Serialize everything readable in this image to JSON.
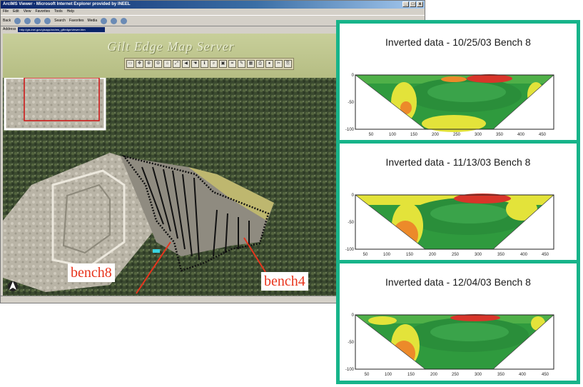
{
  "browser": {
    "title": "ArcIMS Viewer - Microsoft Internet Explorer provided by INEEL",
    "window_buttons": [
      "_",
      "□",
      "x"
    ],
    "menu": [
      "File",
      "Edit",
      "View",
      "Favorites",
      "Tools",
      "Help"
    ],
    "toolbar": [
      "Back",
      "Search",
      "Favorites",
      "Media"
    ],
    "address_label": "Address",
    "address_value": "http://gis.inel.gov/gisapp/arcims_giltedge/viewer.htm"
  },
  "banner": {
    "title": "Gilt Edge Map Server",
    "tools": [
      "▭",
      "✥",
      "⊕",
      "⊖",
      "⌂",
      "⤢",
      "◀",
      "☚",
      "ℹ",
      "⌕",
      "▣",
      "⌗",
      "✎",
      "▦",
      "⎙",
      "●",
      "✂",
      "⎘"
    ]
  },
  "labels": {
    "bench8": "bench8",
    "bench4": "bench4"
  },
  "plots": [
    {
      "title": "Inverted data - 10/25/03 Bench 8",
      "y_ticks": [
        "0",
        "-50",
        "-100"
      ],
      "x_ticks": [
        "50",
        "100",
        "150",
        "200",
        "250",
        "300",
        "350",
        "400",
        "450"
      ]
    },
    {
      "title": "Inverted data - 11/13/03 Bench 8",
      "y_ticks": [
        "0",
        "-50",
        "-100"
      ],
      "x_ticks": [
        "50",
        "100",
        "150",
        "200",
        "250",
        "300",
        "350",
        "400",
        "450"
      ]
    },
    {
      "title": "Inverted data - 12/04/03 Bench 8",
      "y_ticks": [
        "0",
        "-50",
        "-100"
      ],
      "x_ticks": [
        "50",
        "100",
        "150",
        "200",
        "250",
        "300",
        "350",
        "400",
        "450"
      ]
    }
  ],
  "colors": {
    "panel_border": "#17b48a",
    "callout_text": "#e8341c",
    "resistivity_green": "#2f9a3e",
    "resistivity_yellow": "#e3e33a",
    "resistivity_red": "#d8352a",
    "resistivity_orange": "#ec8a2a"
  }
}
